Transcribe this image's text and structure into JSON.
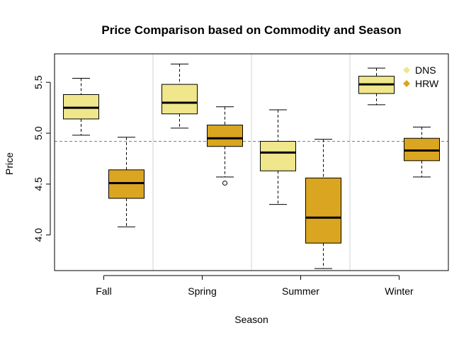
{
  "chart_data": {
    "type": "boxplot",
    "title": "Price Comparison based on Commodity and Season",
    "xlabel": "Season",
    "ylabel": "Price",
    "categories": [
      "Fall",
      "Spring",
      "Summer",
      "Winter"
    ],
    "ylim": [
      3.65,
      5.78
    ],
    "yticks": [
      4.0,
      4.5,
      5.0,
      5.5
    ],
    "ytick_labels": [
      "4.0",
      "4.5",
      "5.0",
      "5.5"
    ],
    "reference_line": 4.92,
    "legend_position": "top-right",
    "grid": "vertical separators between seasons",
    "series": [
      {
        "name": "DNS",
        "color": "#f0e68c",
        "boxes": [
          {
            "whisker_low": 4.98,
            "q1": 5.14,
            "median": 5.25,
            "q3": 5.38,
            "whisker_high": 5.54,
            "outliers": []
          },
          {
            "whisker_low": 5.05,
            "q1": 5.19,
            "median": 5.3,
            "q3": 5.48,
            "whisker_high": 5.68,
            "outliers": []
          },
          {
            "whisker_low": 4.3,
            "q1": 4.63,
            "median": 4.81,
            "q3": 4.92,
            "whisker_high": 5.23,
            "outliers": []
          },
          {
            "whisker_low": 5.28,
            "q1": 5.39,
            "median": 5.48,
            "q3": 5.56,
            "whisker_high": 5.64,
            "outliers": []
          }
        ]
      },
      {
        "name": "HRW",
        "color": "#daa520",
        "boxes": [
          {
            "whisker_low": 4.08,
            "q1": 4.36,
            "median": 4.51,
            "q3": 4.64,
            "whisker_high": 4.96,
            "outliers": []
          },
          {
            "whisker_low": 4.57,
            "q1": 4.87,
            "median": 4.95,
            "q3": 5.08,
            "whisker_high": 5.26,
            "outliers": [
              4.51
            ]
          },
          {
            "whisker_low": 3.67,
            "q1": 3.92,
            "median": 4.17,
            "q3": 4.56,
            "whisker_high": 4.94,
            "outliers": []
          },
          {
            "whisker_low": 4.57,
            "q1": 4.73,
            "median": 4.83,
            "q3": 4.95,
            "whisker_high": 5.06,
            "outliers": []
          }
        ]
      }
    ]
  }
}
